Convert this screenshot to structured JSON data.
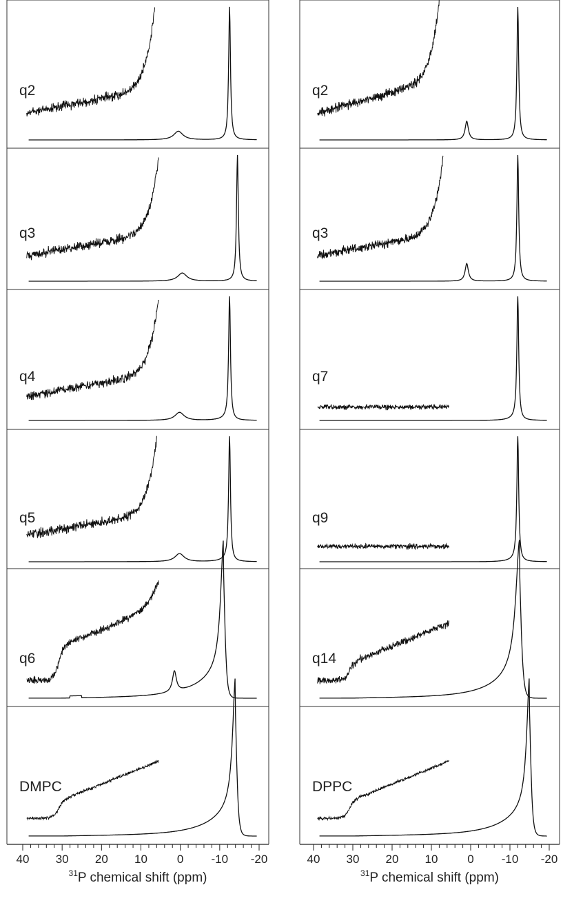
{
  "chart_data": [
    {
      "type": "line",
      "column": "left",
      "x_range": [
        40,
        -20
      ],
      "x_ticks": [
        40,
        30,
        20,
        10,
        0,
        -10,
        -20
      ],
      "x_axis_label": "³¹P chemical shift (ppm)",
      "x_axis_label_prefix": "31",
      "x_axis_label_text": "P chemical shift (ppm)",
      "panels": [
        {
          "label": "q2",
          "main_peak_ppm": -12.5,
          "secondary_peak_ppm": 0.5,
          "inset_x_range": [
            39,
            6.5
          ],
          "profile": "lineshape"
        },
        {
          "label": "q3",
          "main_peak_ppm": -14.5,
          "secondary_peak_ppm": -0.5,
          "inset_x_range": [
            39,
            5.5
          ],
          "profile": "lineshape"
        },
        {
          "label": "q4",
          "main_peak_ppm": -12.5,
          "secondary_peak_ppm": 0.2,
          "inset_x_range": [
            39,
            5.5
          ],
          "profile": "lineshape"
        },
        {
          "label": "q5",
          "main_peak_ppm": -12.5,
          "secondary_peak_ppm": 0.2,
          "inset_x_range": [
            39,
            6.0
          ],
          "profile": "lineshape"
        },
        {
          "label": "q6",
          "main_peak_ppm": -11.0,
          "secondary_peak_ppm": 1.5,
          "inset_x_range": [
            39,
            5.5
          ],
          "profile": "powder"
        },
        {
          "label": "DMPC",
          "main_peak_ppm": -14.0,
          "inset_x_range": [
            39,
            5.5
          ],
          "profile": "powder"
        }
      ]
    },
    {
      "type": "line",
      "column": "right",
      "x_range": [
        40,
        -20
      ],
      "x_ticks": [
        40,
        30,
        20,
        10,
        0,
        -10,
        -20
      ],
      "x_axis_label": "³¹P chemical shift (ppm)",
      "x_axis_label_prefix": "31",
      "x_axis_label_text": "P chemical shift (ppm)",
      "panels": [
        {
          "label": "q2",
          "main_peak_ppm": -12.0,
          "secondary_peak_ppm": 1.0,
          "inset_x_range": [
            39,
            8.0
          ],
          "profile": "lineshape"
        },
        {
          "label": "q3",
          "main_peak_ppm": -12.0,
          "secondary_peak_ppm": 1.0,
          "inset_x_range": [
            39,
            7.0
          ],
          "profile": "lineshape"
        },
        {
          "label": "q7",
          "main_peak_ppm": -12.0,
          "inset_x_range": [
            39,
            5.5
          ],
          "profile": "flat"
        },
        {
          "label": "q9",
          "main_peak_ppm": -12.0,
          "inset_x_range": [
            39,
            5.5
          ],
          "profile": "flat"
        },
        {
          "label": "q14",
          "main_peak_ppm": -12.5,
          "inset_x_range": [
            39,
            5.5
          ],
          "profile": "powder"
        },
        {
          "label": "DPPC",
          "main_peak_ppm": -15.0,
          "inset_x_range": [
            39,
            5.5
          ],
          "profile": "powder"
        }
      ]
    }
  ],
  "colors": {
    "trace": "#111111",
    "panel_border": "#333333",
    "axis": "#222222"
  }
}
